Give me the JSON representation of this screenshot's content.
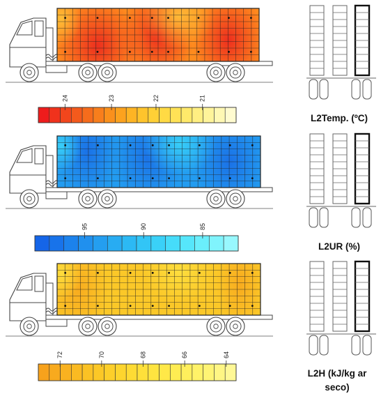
{
  "panels": [
    {
      "id": "temperature",
      "label": "L2Temp. (ºC)",
      "scale_ticks": [
        "24",
        "23",
        "22",
        "21"
      ],
      "colors": {
        "scale": [
          "#ee1c1c",
          "#f0321c",
          "#f2461c",
          "#f45a1c",
          "#f66c1c",
          "#f87e1c",
          "#fa901c",
          "#fca21e",
          "#feb424",
          "#ffc42c",
          "#ffd036",
          "#ffda44",
          "#ffe256",
          "#ffe96a",
          "#ffef82",
          "#fff49a",
          "#fff8b4",
          "#fffbd0"
        ],
        "heat_base": "#ff8c1e",
        "heat_hot": "#ec2a1e",
        "heat_cool": "#ffc23a"
      }
    },
    {
      "id": "humidity",
      "label": "L2UR (%)",
      "scale_ticks": [
        "95",
        "90",
        "85"
      ],
      "colors": {
        "scale": [
          "#1565e8",
          "#1873ea",
          "#1c82ec",
          "#2090ee",
          "#249ef0",
          "#28acf2",
          "#2cb9f4",
          "#32c5f6",
          "#3ad1f8",
          "#46dcfa",
          "#56e6fb",
          "#6aeefc",
          "#80f4fd",
          "#98f8fe"
        ],
        "heat_base": "#239cf0",
        "heat_hot": "#1a6fe6",
        "heat_cool": "#3bd4f8"
      }
    },
    {
      "id": "enthalpy",
      "label": "L2H (kJ/kg ar seco)",
      "scale_ticks": [
        "72",
        "70",
        "68",
        "66",
        "64"
      ],
      "colors": {
        "scale": [
          "#f7a21c",
          "#f8aa1e",
          "#f9b220",
          "#faba22",
          "#fbc224",
          "#fcc826",
          "#fdcf2a",
          "#fdd52e",
          "#fedb34",
          "#fee03a",
          "#fee440",
          "#ffe848",
          "#ffec52",
          "#ffef5c",
          "#fff268",
          "#fff474",
          "#fff684",
          "#fff896"
        ],
        "heat_base": "#fbc828",
        "heat_hot": "#f8aa1e",
        "heat_cool": "#fee040"
      }
    }
  ]
}
